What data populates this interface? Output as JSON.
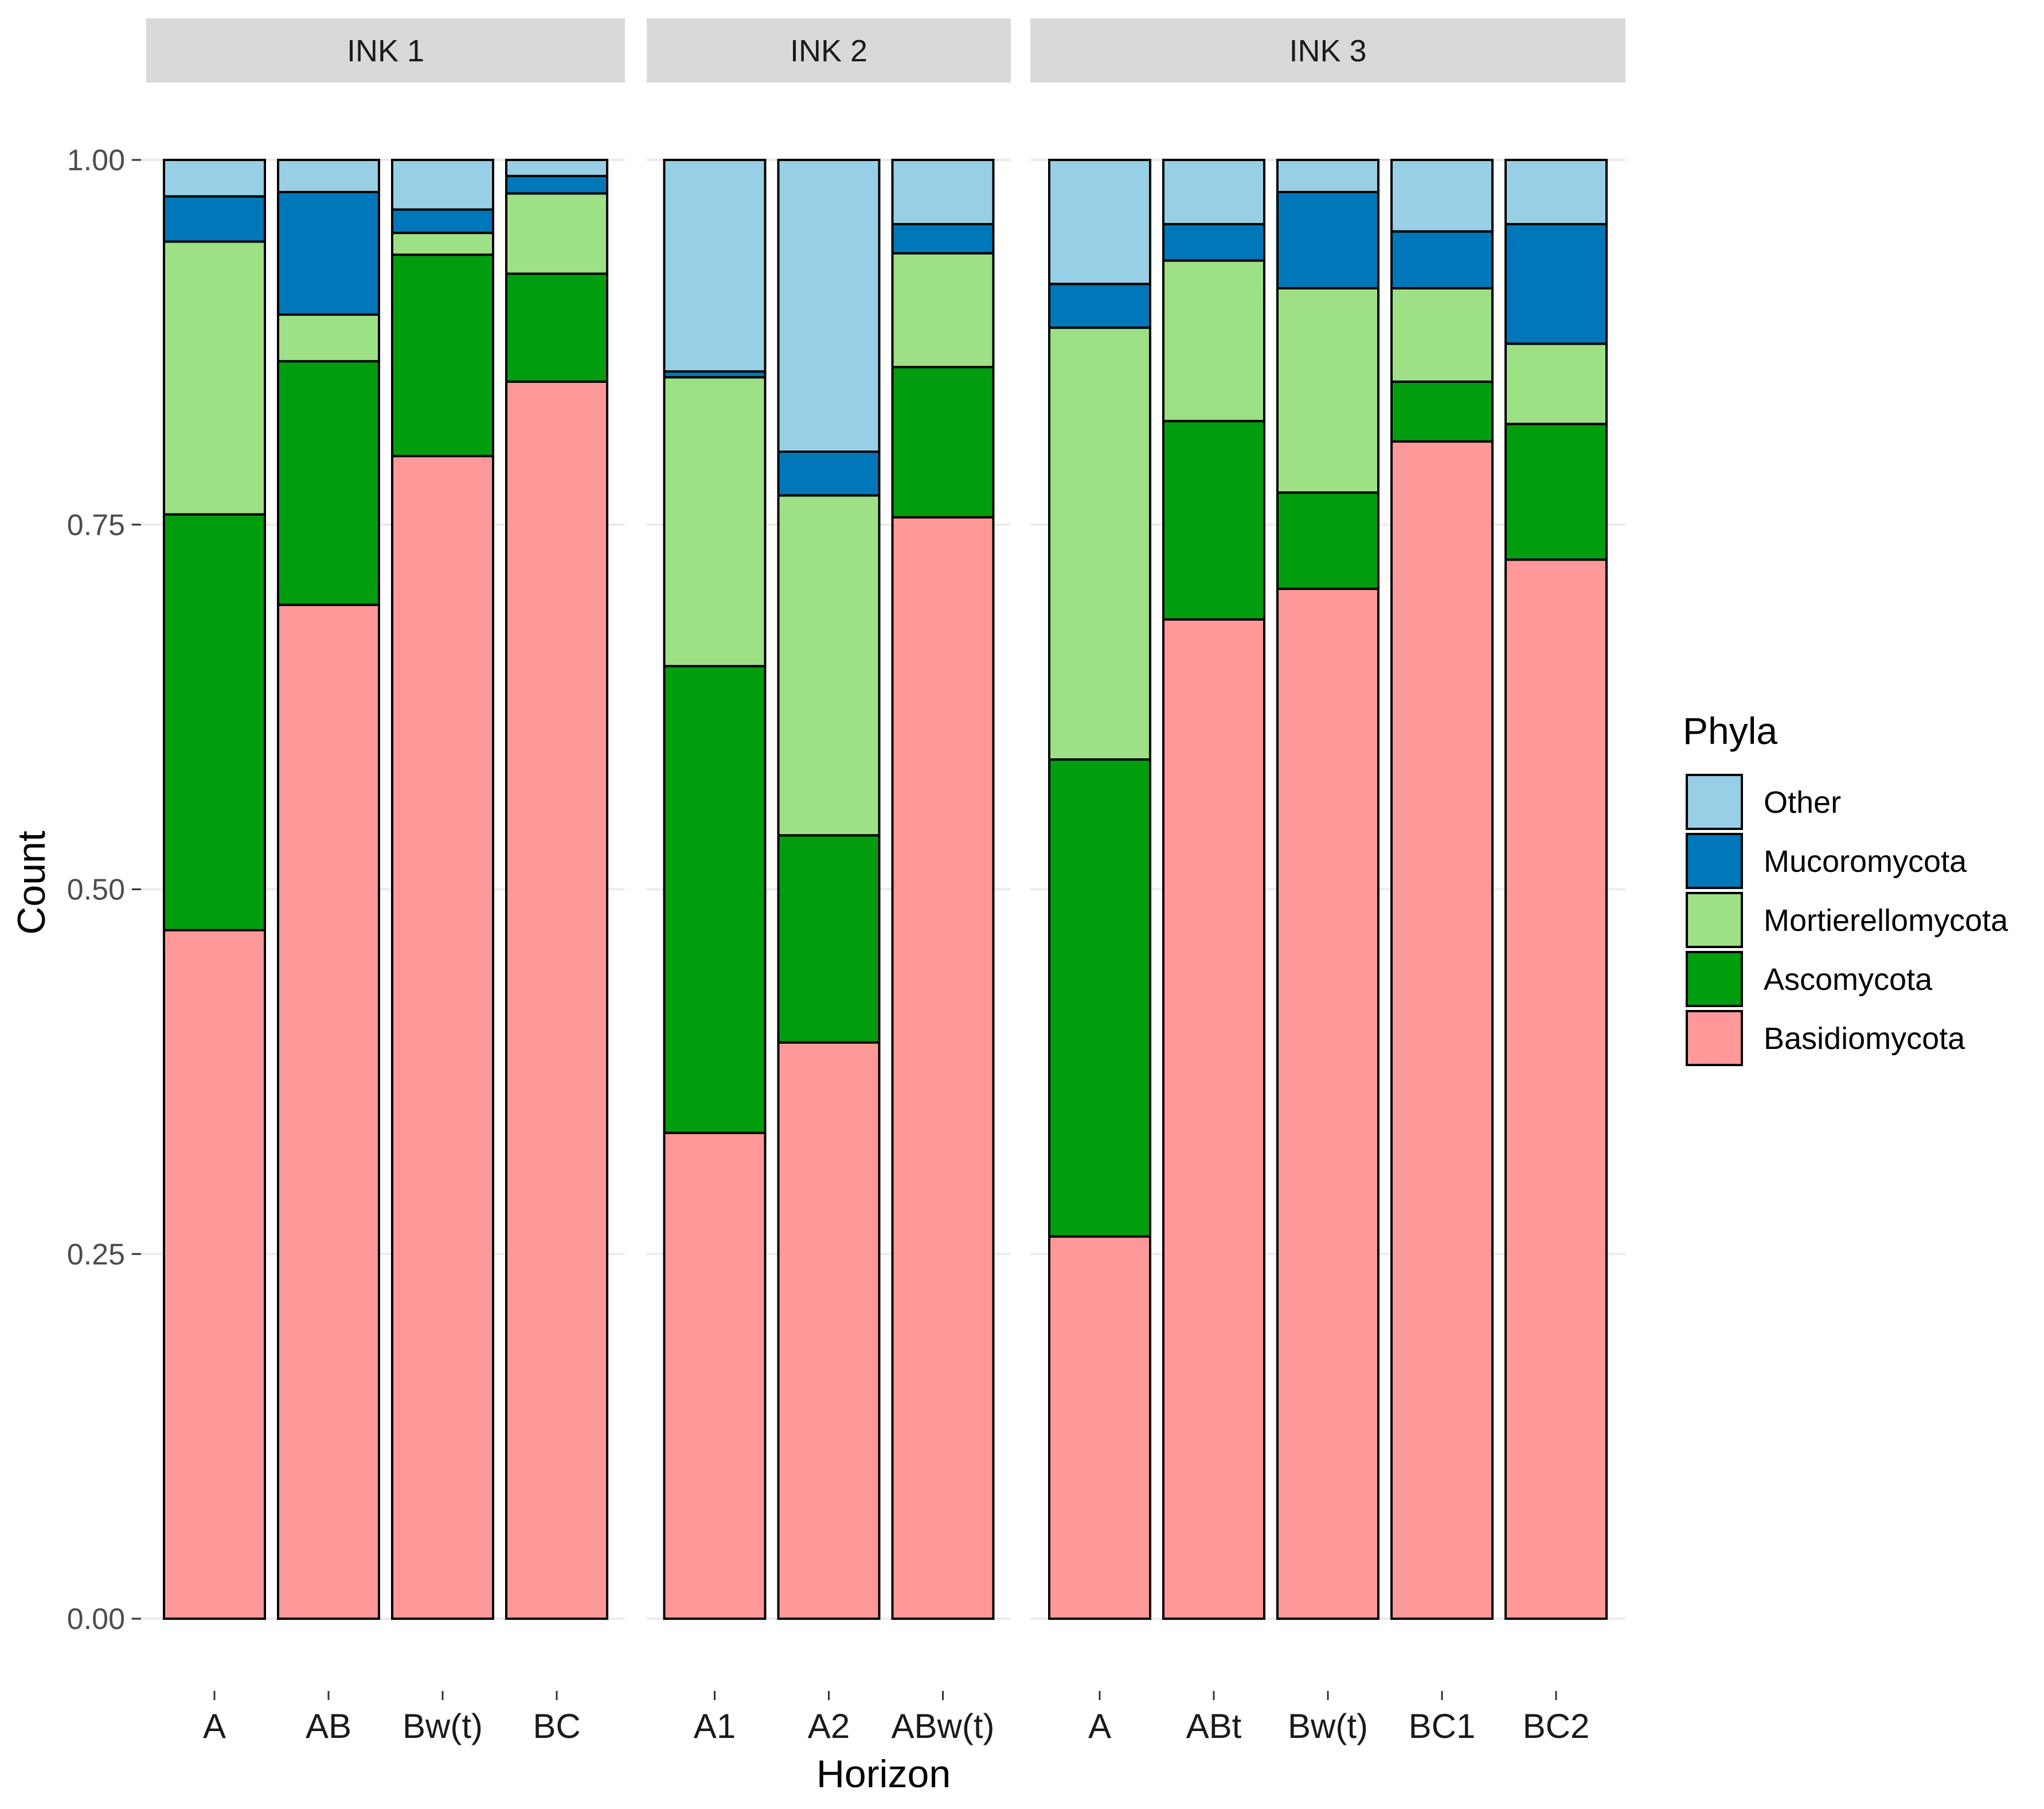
{
  "chart_data": {
    "type": "bar",
    "stacked": true,
    "ylabel": "Count",
    "xlabel": "Horizon",
    "ylim": [
      0,
      1
    ],
    "yticks": [
      "0.00",
      "0.25",
      "0.50",
      "0.75",
      "1.00"
    ],
    "legend": {
      "title": "Phyla",
      "placement": "right",
      "entries": [
        "Other",
        "Mucoromycota",
        "Mortierellomycota",
        "Ascomycota",
        "Basidiomycota"
      ]
    },
    "colors": {
      "Basidiomycota": "#FF9999",
      "Ascomycota": "#009E0E",
      "Mortierellomycota": "#9DE085",
      "Mucoromycota": "#0077B8",
      "Other": "#97D0E6"
    },
    "stack_order": [
      "Basidiomycota",
      "Ascomycota",
      "Mortierellomycota",
      "Mucoromycota",
      "Other"
    ],
    "panels": [
      {
        "name": "INK 1",
        "categories": [
          "A",
          "AB",
          "Bw(t)",
          "BC"
        ],
        "series": [
          {
            "name": "Basidiomycota",
            "values": [
              0.472,
              0.695,
              0.797,
              0.848
            ]
          },
          {
            "name": "Ascomycota",
            "values": [
              0.285,
              0.167,
              0.138,
              0.074
            ]
          },
          {
            "name": "Mortierellomycota",
            "values": [
              0.187,
              0.032,
              0.015,
              0.055
            ]
          },
          {
            "name": "Mucoromycota",
            "values": [
              0.031,
              0.084,
              0.016,
              0.012
            ]
          },
          {
            "name": "Other",
            "values": [
              0.025,
              0.022,
              0.034,
              0.011
            ]
          }
        ]
      },
      {
        "name": "INK 2",
        "categories": [
          "A1",
          "A2",
          "ABw(t)"
        ],
        "series": [
          {
            "name": "Basidiomycota",
            "values": [
              0.333,
              0.395,
              0.755
            ]
          },
          {
            "name": "Ascomycota",
            "values": [
              0.32,
              0.142,
              0.103
            ]
          },
          {
            "name": "Mortierellomycota",
            "values": [
              0.198,
              0.233,
              0.078
            ]
          },
          {
            "name": "Mucoromycota",
            "values": [
              0.004,
              0.03,
              0.02
            ]
          },
          {
            "name": "Other",
            "values": [
              0.145,
              0.2,
              0.044
            ]
          }
        ]
      },
      {
        "name": "INK 3",
        "categories": [
          "A",
          "ABt",
          "Bw(t)",
          "BC1",
          "BC2"
        ],
        "series": [
          {
            "name": "Basidiomycota",
            "values": [
              0.262,
              0.685,
              0.706,
              0.807,
              0.726
            ]
          },
          {
            "name": "Ascomycota",
            "values": [
              0.327,
              0.136,
              0.066,
              0.041,
              0.093
            ]
          },
          {
            "name": "Mortierellomycota",
            "values": [
              0.296,
              0.11,
              0.14,
              0.064,
              0.055
            ]
          },
          {
            "name": "Mucoromycota",
            "values": [
              0.03,
              0.025,
              0.066,
              0.039,
              0.082
            ]
          },
          {
            "name": "Other",
            "values": [
              0.085,
              0.044,
              0.022,
              0.049,
              0.044
            ]
          }
        ]
      }
    ]
  }
}
